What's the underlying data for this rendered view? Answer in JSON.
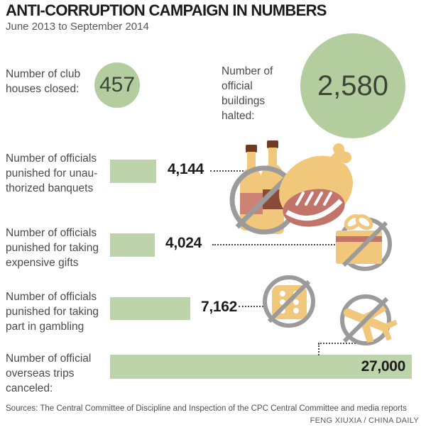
{
  "header": {
    "title": "ANTI-CORRUPTION CAMPAIGN IN NUMBERS",
    "subtitle": "June 2013 to September 2014"
  },
  "stats": [
    {
      "label": "Number of club\nhouses closed:",
      "value": "457"
    },
    {
      "label": "Number of\nofficial\nbuildings\nhalted:",
      "value": "2,580"
    }
  ],
  "rows": [
    {
      "label": "Number of officials\npunished for unau-\nthorized banquets",
      "value": "4,144",
      "icon": "banquet-prohibited-icon"
    },
    {
      "label": "Number of officials\npunished for taking\nexpensive gifts",
      "value": "4,024",
      "icon": "gift-prohibited-icon"
    },
    {
      "label": "Number of officials\npunished for taking\npart in gambling",
      "value": "7,162",
      "icon": "dice-prohibited-icon"
    },
    {
      "label": "Number of official\noverseas trips\ncanceled:",
      "value": "27,000",
      "icon": "airplane-prohibited-icon"
    }
  ],
  "footer": {
    "sources": "Sources: The Central Committee of Discipline and Inspection of the CPC Central Committee and media reports",
    "credit": "FENG XIUXIA / CHINA DAILY"
  },
  "colors": {
    "circle_green": "#b3cd9e",
    "bar_green": "#bdd3aa",
    "tan": "#f1c77c",
    "red": "#c3746a",
    "salmon": "#cd8276",
    "brown": "#6e3a26",
    "maroon": "#8a4a38",
    "ring_gray": "#9b9b9b",
    "dot_gray": "#4a4a4a",
    "ink": "#1c1c1c",
    "label_gray": "#4a4a4a"
  },
  "chart_data": {
    "type": "bar",
    "orientation": "horizontal",
    "title": "ANTI-CORRUPTION CAMPAIGN IN NUMBERS",
    "subtitle": "June 2013 to September 2014",
    "categories": [
      "Number of officials punished for unauthorized banquets",
      "Number of officials punished for taking expensive gifts",
      "Number of officials punished for taking part in gambling",
      "Number of official overseas trips canceled"
    ],
    "values": [
      4144,
      4024,
      7162,
      27000
    ],
    "value_labels": [
      "4,144",
      "4,024",
      "7,162",
      "27,000"
    ],
    "xlim": [
      0,
      27000
    ],
    "bar_color": "#bdd3aa",
    "grid": false,
    "legend": false,
    "extra_stats": [
      {
        "label": "Number of club houses closed",
        "value": 457,
        "display": "457"
      },
      {
        "label": "Number of official buildings halted",
        "value": 2580,
        "display": "2,580"
      }
    ]
  }
}
